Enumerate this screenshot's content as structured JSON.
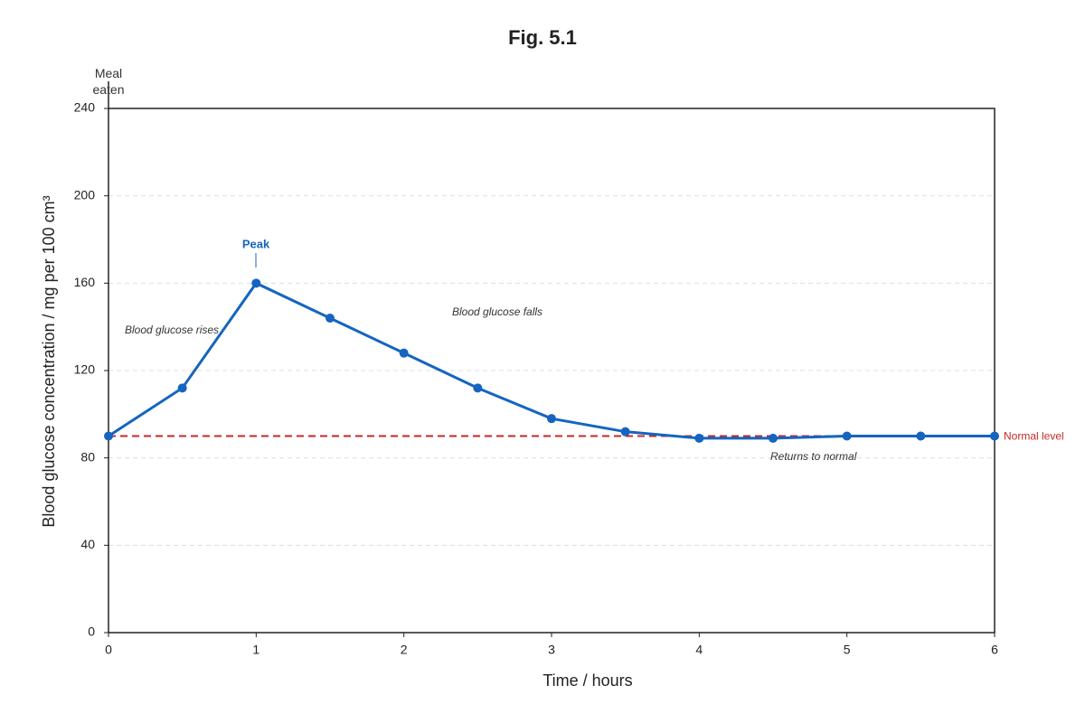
{
  "chart_data": {
    "type": "line",
    "title": "Fig. 5.1",
    "x_label": "Time / hours",
    "y_label": "Blood glucose concentration / mg per 100 cm³",
    "x": [
      0,
      0.5,
      1,
      1.5,
      2,
      2.5,
      3,
      3.5,
      4,
      4.5,
      5,
      5.5,
      6
    ],
    "values": [
      90,
      112,
      160,
      144,
      128,
      112,
      98,
      92,
      89,
      89,
      90,
      90,
      90
    ],
    "color": "#1565c0",
    "xlim": [
      0,
      6
    ],
    "xticks": [
      0,
      1,
      2,
      3,
      4,
      5,
      6
    ],
    "ylim": [
      0,
      240
    ],
    "yticks": [
      0,
      40,
      80,
      120,
      160,
      200,
      240
    ],
    "grid": true,
    "reference_line": {
      "value": 90,
      "label": "Normal level",
      "color": "#c62828"
    },
    "x_marker": {
      "value": 0,
      "label": "Meal eaten"
    },
    "annotations": [
      "Peak",
      "Blood glucose rises",
      "Blood glucose falls",
      "Returns to normal"
    ]
  }
}
